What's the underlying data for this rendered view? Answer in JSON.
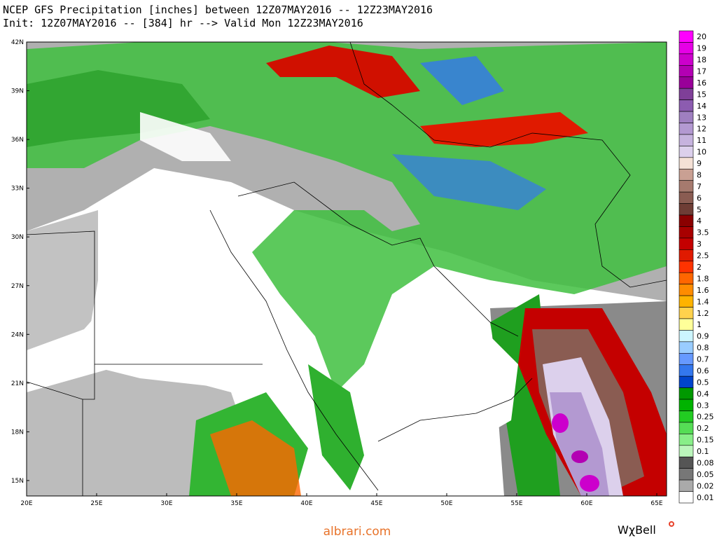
{
  "header": {
    "line1": "NCEP GFS Precipitation [inches] between 12Z07MAY2016 -- 12Z23MAY2016",
    "line2": "Init: 12Z07MAY2016 -- [384] hr --> Valid Mon 12Z23MAY2016"
  },
  "map": {
    "lat_labels": [
      "42N",
      "39N",
      "36N",
      "33N",
      "30N",
      "27N",
      "24N",
      "21N",
      "18N",
      "15N"
    ],
    "lon_labels": [
      "20E",
      "25E",
      "30E",
      "35E",
      "40E",
      "45E",
      "50E",
      "55E",
      "60E",
      "65E"
    ]
  },
  "legend": {
    "levels": [
      {
        "label": 20,
        "color": "#ff00ff"
      },
      {
        "label": 19,
        "color": "#e600e6"
      },
      {
        "label": 18,
        "color": "#cc00cc"
      },
      {
        "label": 17,
        "color": "#b300b3"
      },
      {
        "label": 16,
        "color": "#990099"
      },
      {
        "label": 15,
        "color": "#7f3f98"
      },
      {
        "label": 14,
        "color": "#8c5cb0"
      },
      {
        "label": 13,
        "color": "#9f7fc0"
      },
      {
        "label": 12,
        "color": "#b399d1"
      },
      {
        "label": 11,
        "color": "#c6b3de"
      },
      {
        "label": 10,
        "color": "#dcd0ec"
      },
      {
        "label": 9,
        "color": "#f5e1d6"
      },
      {
        "label": 8,
        "color": "#c9a093"
      },
      {
        "label": 7,
        "color": "#a67a6e"
      },
      {
        "label": 6,
        "color": "#8a5c52"
      },
      {
        "label": 5,
        "color": "#6e3d35"
      },
      {
        "label": 4,
        "color": "#8b0000"
      },
      {
        "label": 3.5,
        "color": "#a80000"
      },
      {
        "label": 3,
        "color": "#c40000"
      },
      {
        "label": 2.5,
        "color": "#e01a00"
      },
      {
        "label": 2,
        "color": "#ff3300"
      },
      {
        "label": 1.8,
        "color": "#ff6600"
      },
      {
        "label": 1.6,
        "color": "#ff8c00"
      },
      {
        "label": 1.4,
        "color": "#ffb300"
      },
      {
        "label": 1.2,
        "color": "#ffd24d"
      },
      {
        "label": 1,
        "color": "#ffff99"
      },
      {
        "label": 0.9,
        "color": "#ccf5ff"
      },
      {
        "label": 0.8,
        "color": "#99ccff"
      },
      {
        "label": 0.7,
        "color": "#6699ff"
      },
      {
        "label": 0.6,
        "color": "#3377ee"
      },
      {
        "label": 0.5,
        "color": "#0044cc"
      },
      {
        "label": 0.4,
        "color": "#009900"
      },
      {
        "label": 0.3,
        "color": "#00b300"
      },
      {
        "label": 0.25,
        "color": "#22cc22"
      },
      {
        "label": 0.2,
        "color": "#55dd55"
      },
      {
        "label": 0.15,
        "color": "#88ee88"
      },
      {
        "label": 0.1,
        "color": "#bbf5bb"
      },
      {
        "label": 0.08,
        "color": "#555555"
      },
      {
        "label": 0.05,
        "color": "#777777"
      },
      {
        "label": 0.02,
        "color": "#aaaaaa"
      },
      {
        "label": 0.01,
        "color": "#ffffff"
      }
    ]
  },
  "footer": {
    "site": "albrari.com",
    "brand": "WχBell"
  }
}
